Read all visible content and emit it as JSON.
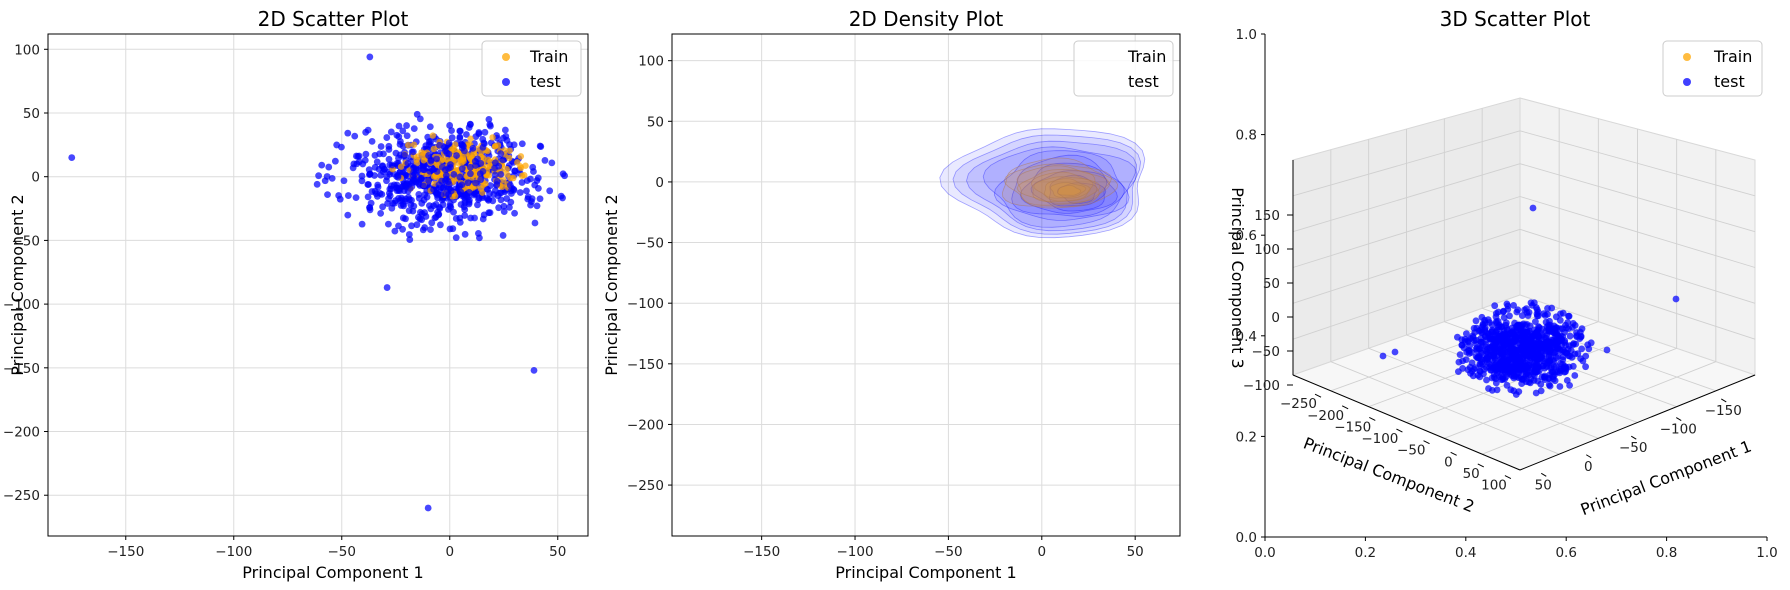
{
  "chart_data": [
    {
      "type": "scatter",
      "title": "2D Scatter Plot",
      "xlabel": "Principal Component 1",
      "ylabel": "Principal Component 2",
      "xlim": [
        -186,
        64
      ],
      "ylim": [
        -282,
        112
      ],
      "xticks": [
        -150,
        -100,
        -50,
        0,
        50
      ],
      "yticks": [
        -250,
        -200,
        -150,
        -100,
        -50,
        0,
        50,
        100
      ],
      "xtick_labels": [
        "−150",
        "−100",
        "−50",
        "0",
        "50"
      ],
      "ytick_labels": [
        "−250",
        "−200",
        "−150",
        "−100",
        "−50",
        "0",
        "50",
        "100"
      ],
      "grid": true,
      "legend": "top-right",
      "series": [
        {
          "name": "Train",
          "color": "#FFA500",
          "cluster": {
            "center": [
              5,
              8
            ],
            "spread": [
              14,
              11
            ],
            "count": 240
          }
        },
        {
          "name": "test",
          "color": "#0000FF",
          "cluster": {
            "center": [
              -2,
              0
            ],
            "spread": [
              24,
              20
            ],
            "count": 650
          },
          "outliers": [
            [
              -175,
              15
            ],
            [
              -37,
              94
            ],
            [
              -29,
              -87
            ],
            [
              39,
              -152
            ],
            [
              -10,
              -260
            ]
          ]
        }
      ]
    },
    {
      "type": "area",
      "subtype": "density",
      "title": "2D Density Plot",
      "xlabel": "Principal Component 1",
      "ylabel": "Principal Component 2",
      "xlim": [
        -198,
        74
      ],
      "ylim": [
        -292,
        122
      ],
      "xticks": [
        -150,
        -100,
        -50,
        0,
        50
      ],
      "yticks": [
        -250,
        -200,
        -150,
        -100,
        -50,
        0,
        50,
        100
      ],
      "xtick_labels": [
        "−150",
        "−100",
        "−50",
        "0",
        "50"
      ],
      "ytick_labels": [
        "−250",
        "−200",
        "−150",
        "−100",
        "−50",
        "0",
        "50",
        "100"
      ],
      "grid": true,
      "legend": "top-right",
      "series": [
        {
          "name": "Train",
          "color": "#FFA500",
          "center": [
            8,
            -2
          ],
          "extent": [
            30,
            20
          ]
        },
        {
          "name": "test",
          "color": "#0000FF",
          "center": [
            5,
            0
          ],
          "extent": [
            53,
            45
          ]
        }
      ]
    },
    {
      "type": "scatter",
      "subtype": "3d",
      "title": "3D Scatter Plot",
      "xlabel": "Principal Component 1",
      "ylabel": "Principal Component 2",
      "zlabel": "Principal Component 3",
      "frame_ticks": [
        "0.0",
        "0.2",
        "0.4",
        "0.6",
        "0.8",
        "1.0"
      ],
      "x_ticks_3d": [
        "−150",
        "−100",
        "−50",
        "0",
        "50"
      ],
      "y_ticks_3d": [
        "−250",
        "−200",
        "−150",
        "−100",
        "−50",
        "0",
        "50",
        "100"
      ],
      "z_ticks_3d": [
        "−100",
        "−50",
        "0",
        "50",
        "100",
        "150"
      ],
      "legend": "top-right",
      "series": [
        {
          "name": "Train",
          "color": "#FFA500"
        },
        {
          "name": "test",
          "color": "#0000FF"
        }
      ]
    }
  ]
}
